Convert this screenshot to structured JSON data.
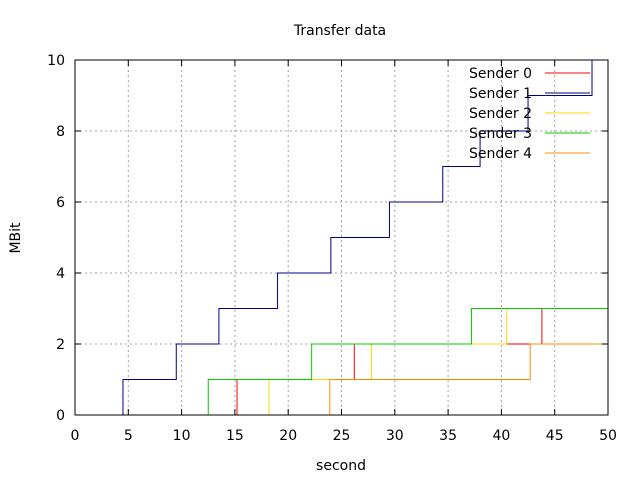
{
  "chart_data": {
    "type": "line",
    "title": "Transfer data",
    "xlabel": "second",
    "ylabel": "MBit",
    "xlim": [
      0,
      50
    ],
    "ylim": [
      0,
      10
    ],
    "x_ticks": [
      "0",
      "5",
      "10",
      "15",
      "20",
      "25",
      "30",
      "35",
      "40",
      "45",
      "50"
    ],
    "y_ticks": [
      "0",
      "2",
      "4",
      "6",
      "8",
      "10"
    ],
    "grid": true,
    "legend_position": "top-right",
    "step": true,
    "series": [
      {
        "name": "Sender 0",
        "color": "#ff0000",
        "x": [
          15.2,
          15.2,
          26.2,
          26.2,
          43.8,
          43.8,
          50
        ],
        "y": [
          0,
          1,
          1,
          2,
          2,
          3,
          3
        ]
      },
      {
        "name": "Sender 1",
        "color": "#00008b",
        "x": [
          4.5,
          4.5,
          9.5,
          9.5,
          13.5,
          13.5,
          19.0,
          19.0,
          24.0,
          24.0,
          29.5,
          29.5,
          34.5,
          34.5,
          38.0,
          38.0,
          42.5,
          42.5,
          48.5,
          48.5
        ],
        "y": [
          0,
          1,
          1,
          2,
          2,
          3,
          3,
          4,
          4,
          5,
          5,
          6,
          6,
          7,
          7,
          8,
          8,
          9,
          9,
          10
        ]
      },
      {
        "name": "Sender 2",
        "color": "#ffd700",
        "x": [
          18.2,
          18.2,
          27.8,
          27.8,
          40.5,
          40.5,
          50
        ],
        "y": [
          0,
          1,
          1,
          2,
          2,
          3,
          3
        ]
      },
      {
        "name": "Sender 3",
        "color": "#00cc00",
        "x": [
          12.5,
          12.5,
          22.2,
          22.2,
          37.2,
          37.2,
          50
        ],
        "y": [
          0,
          1,
          1,
          2,
          2,
          3,
          3
        ]
      },
      {
        "name": "Sender 4",
        "color": "#ff8c00",
        "x": [
          23.9,
          23.9,
          42.7,
          42.7,
          50
        ],
        "y": [
          0,
          1,
          1,
          2,
          2
        ]
      }
    ]
  }
}
